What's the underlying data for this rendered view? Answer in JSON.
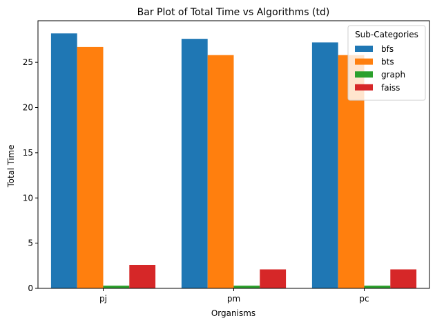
{
  "chart_data": {
    "type": "bar",
    "title": "Bar Plot of Total Time vs Algorithms (td)",
    "xlabel": "Organisms",
    "ylabel": "Total Time",
    "categories": [
      "pj",
      "pm",
      "pc"
    ],
    "series": [
      {
        "name": "bfs",
        "color": "#1f77b4",
        "values": [
          28.2,
          27.6,
          27.2
        ]
      },
      {
        "name": "bts",
        "color": "#ff7f0e",
        "values": [
          26.7,
          25.8,
          25.8
        ]
      },
      {
        "name": "graph",
        "color": "#2ca02c",
        "values": [
          0.3,
          0.3,
          0.3
        ]
      },
      {
        "name": "faiss",
        "color": "#d62728",
        "values": [
          2.6,
          2.1,
          2.1
        ]
      }
    ],
    "ylim": [
      0,
      29.6
    ],
    "yticks": [
      0,
      5,
      10,
      15,
      20,
      25
    ],
    "legend": {
      "title": "Sub-Categories",
      "placement": "top-right"
    },
    "grid": false
  }
}
